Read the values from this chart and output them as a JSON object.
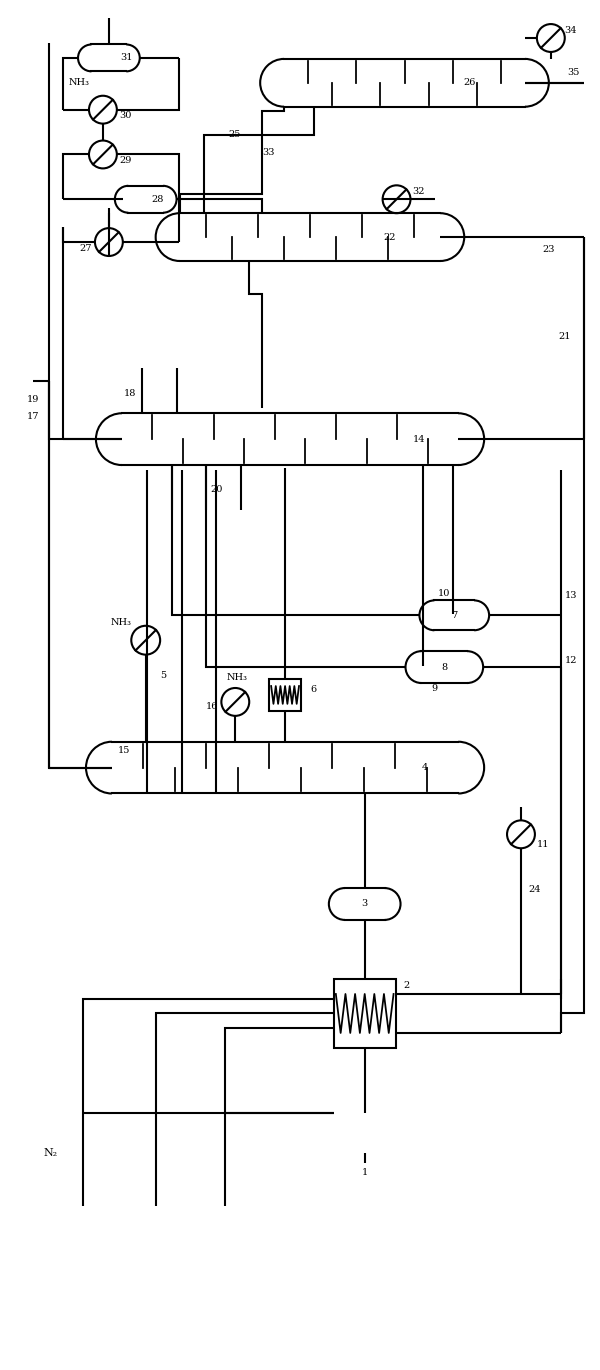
{
  "bg_color": "#ffffff",
  "line_color": "#000000",
  "line_width": 1.5,
  "figsize": [
    6.0,
    13.7
  ],
  "dpi": 100,
  "xlim": [
    0,
    6
  ],
  "ylim": [
    0,
    13.7
  ]
}
